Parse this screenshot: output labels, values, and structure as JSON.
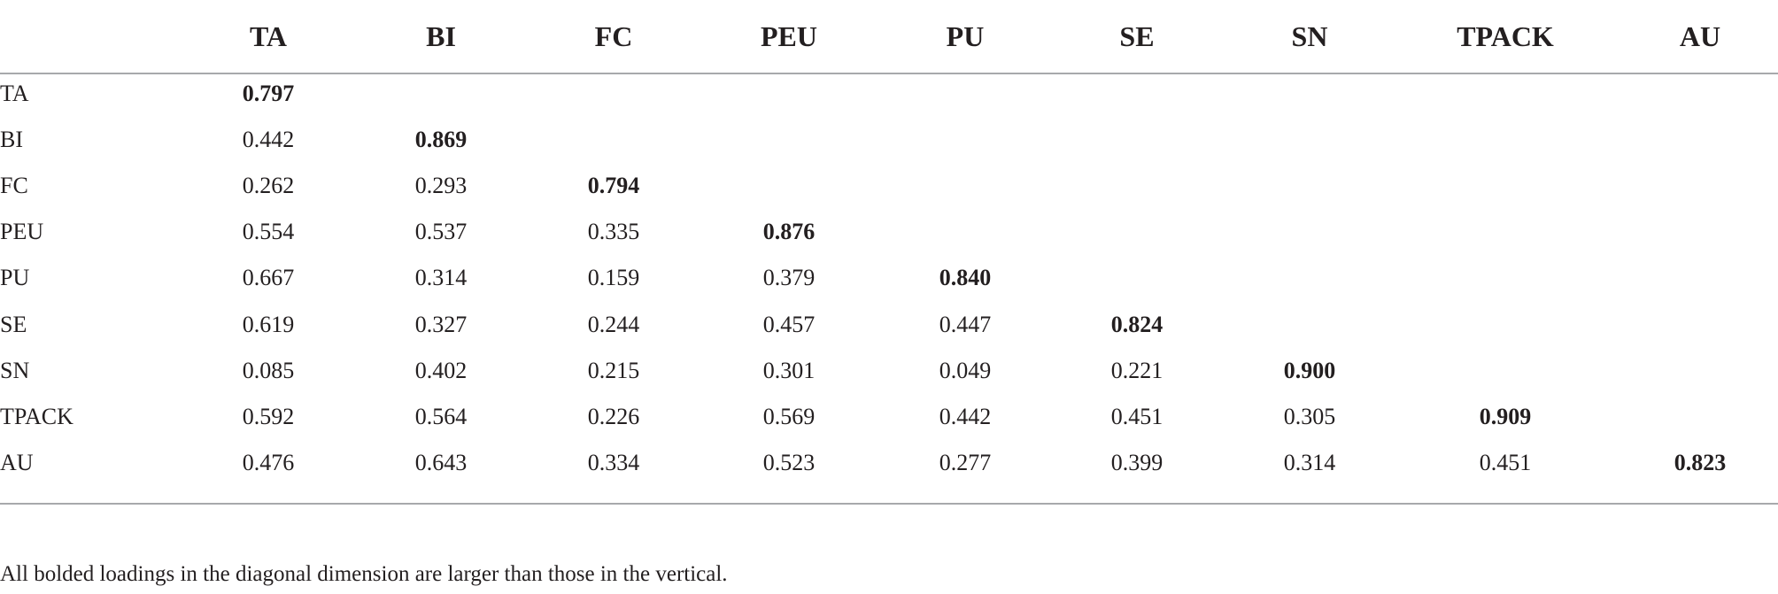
{
  "table": {
    "columns": [
      "TA",
      "BI",
      "FC",
      "PEU",
      "PU",
      "SE",
      "SN",
      "TPACK",
      "AU"
    ],
    "rows": [
      [
        "TA",
        "0.797"
      ],
      [
        "BI",
        "0.442",
        "0.869"
      ],
      [
        "FC",
        "0.262",
        "0.293",
        "0.794"
      ],
      [
        "PEU",
        "0.554",
        "0.537",
        "0.335",
        "0.876"
      ],
      [
        "PU",
        "0.667",
        "0.314",
        "0.159",
        "0.379",
        "0.840"
      ],
      [
        "SE",
        "0.619",
        "0.327",
        "0.244",
        "0.457",
        "0.447",
        "0.824"
      ],
      [
        "SN",
        "0.085",
        "0.402",
        "0.215",
        "0.301",
        "0.049",
        "0.221",
        "0.900"
      ],
      [
        "TPACK",
        "0.592",
        "0.564",
        "0.226",
        "0.569",
        "0.442",
        "0.451",
        "0.305",
        "0.909"
      ],
      [
        "AU",
        "0.476",
        "0.643",
        "0.334",
        "0.523",
        "0.277",
        "0.399",
        "0.314",
        "0.451",
        "0.823"
      ]
    ],
    "note": "All bolded loadings in the diagonal dimension are larger than those in the vertical."
  }
}
